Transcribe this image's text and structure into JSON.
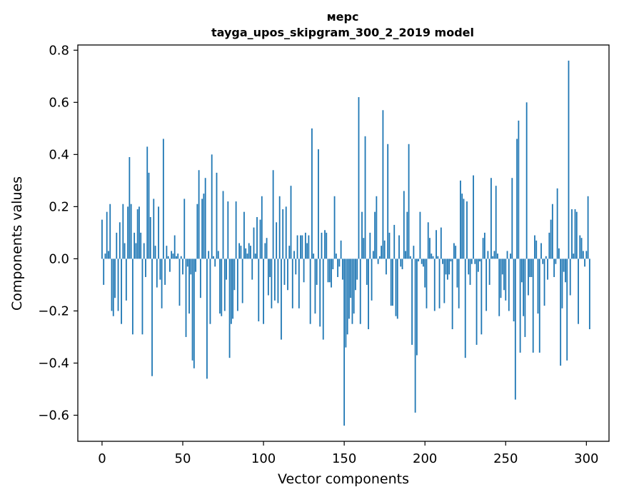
{
  "chart_data": {
    "type": "bar",
    "title": "мерс",
    "subtitle": "tayga_upos_skipgram_300_2_2019 model",
    "xlabel": "Vector components",
    "ylabel": "Components values",
    "xlim": [
      -15,
      314
    ],
    "ylim": [
      -0.7,
      0.82
    ],
    "xticks": [
      0,
      50,
      100,
      150,
      200,
      250,
      300
    ],
    "xtick_labels": [
      "0",
      "50",
      "100",
      "150",
      "200",
      "250",
      "300"
    ],
    "yticks": [
      -0.6,
      -0.4,
      -0.2,
      0.0,
      0.2,
      0.4,
      0.6,
      0.8
    ],
    "ytick_labels": [
      "−0.6",
      "−0.4",
      "−0.2",
      "0.0",
      "0.2",
      "0.4",
      "0.6",
      "0.8"
    ],
    "grid": false,
    "color": "#1f77b4",
    "values": [
      0.15,
      -0.1,
      0.02,
      0.18,
      0.03,
      0.21,
      -0.2,
      -0.22,
      -0.15,
      0.1,
      -0.2,
      0.14,
      -0.25,
      0.21,
      0.06,
      -0.16,
      0.2,
      0.39,
      0.21,
      -0.29,
      0.1,
      0.06,
      0.19,
      0.2,
      0.1,
      -0.29,
      0.06,
      -0.07,
      0.43,
      0.33,
      0.16,
      -0.45,
      0.23,
      0.05,
      -0.11,
      0.2,
      -0.08,
      -0.19,
      0.46,
      -0.1,
      0.05,
      0.01,
      -0.05,
      0.03,
      0.02,
      0.09,
      0.01,
      0.02,
      -0.18,
      0.01,
      -0.06,
      0.23,
      -0.3,
      -0.03,
      -0.21,
      -0.06,
      -0.39,
      -0.42,
      -0.05,
      0.21,
      0.34,
      -0.15,
      0.23,
      0.25,
      0.31,
      -0.46,
      0.03,
      -0.25,
      0.4,
      0.01,
      -0.03,
      0.33,
      0.03,
      -0.21,
      -0.22,
      0.26,
      -0.2,
      -0.08,
      0.22,
      -0.38,
      -0.25,
      -0.23,
      -0.12,
      0.22,
      -0.2,
      0.06,
      0.05,
      -0.17,
      0.18,
      0.04,
      0.02,
      0.06,
      0.05,
      -0.08,
      0.12,
      0.02,
      0.16,
      -0.24,
      0.15,
      0.24,
      -0.25,
      0.06,
      0.08,
      -0.14,
      -0.07,
      -0.19,
      0.34,
      -0.16,
      0.14,
      -0.17,
      0.24,
      -0.31,
      0.19,
      -0.1,
      0.2,
      -0.12,
      0.05,
      0.28,
      -0.19,
      0.03,
      -0.06,
      0.09,
      -0.19,
      0.09,
      0.09,
      -0.09,
      0.1,
      0.06,
      0.09,
      -0.25,
      0.5,
      0.02,
      -0.21,
      -0.1,
      0.42,
      -0.26,
      0.1,
      -0.31,
      0.11,
      0.1,
      -0.09,
      -0.09,
      -0.11,
      -0.04,
      0.24,
      0.02,
      -0.07,
      -0.03,
      0.07,
      -0.08,
      -0.64,
      -0.34,
      -0.29,
      -0.23,
      -0.15,
      -0.25,
      -0.21,
      -0.12,
      -0.08,
      0.62,
      -0.25,
      0.18,
      0.08,
      0.47,
      -0.1,
      -0.27,
      0.1,
      -0.16,
      0.03,
      0.18,
      0.24,
      -0.02,
      0.01,
      0.05,
      0.57,
      0.07,
      -0.06,
      0.44,
      0.1,
      -0.18,
      -0.18,
      0.13,
      -0.22,
      -0.23,
      0.09,
      -0.03,
      -0.04,
      0.26,
      0.03,
      0.18,
      0.44,
      0.01,
      -0.33,
      0.05,
      -0.59,
      -0.37,
      -0.01,
      0.18,
      -0.02,
      -0.03,
      -0.11,
      -0.19,
      0.14,
      0.08,
      0.02,
      0.01,
      -0.2,
      0.11,
      0.01,
      -0.19,
      0.12,
      -0.02,
      -0.17,
      -0.06,
      -0.08,
      -0.06,
      -0.01,
      -0.27,
      0.06,
      0.05,
      -0.11,
      -0.19,
      0.3,
      0.25,
      0.23,
      -0.38,
      0.22,
      -0.06,
      -0.1,
      -0.02,
      0.32,
      -0.02,
      -0.33,
      -0.05,
      -0.01,
      -0.29,
      0.08,
      0.1,
      -0.2,
      0.03,
      -0.1,
      0.31,
      0.01,
      0.03,
      0.28,
      0.02,
      -0.22,
      -0.15,
      -0.06,
      -0.12,
      -0.16,
      0.03,
      -0.2,
      0.02,
      0.31,
      -0.24,
      -0.54,
      0.46,
      0.53,
      -0.36,
      -0.09,
      -0.22,
      -0.3,
      0.6,
      -0.14,
      -0.07,
      -0.07,
      -0.36,
      0.09,
      0.07,
      -0.21,
      -0.36,
      0.06,
      -0.02,
      -0.18,
      0.01,
      -0.08,
      0.1,
      0.15,
      0.21,
      -0.07,
      -0.02,
      0.27,
      0.04,
      -0.41,
      -0.19,
      -0.05,
      -0.09,
      -0.39,
      0.76,
      -0.14,
      0.19,
      0.02,
      0.19,
      0.18,
      -0.25,
      0.09,
      0.08,
      0.03,
      -0.03,
      0.03,
      0.24,
      -0.27
    ]
  }
}
